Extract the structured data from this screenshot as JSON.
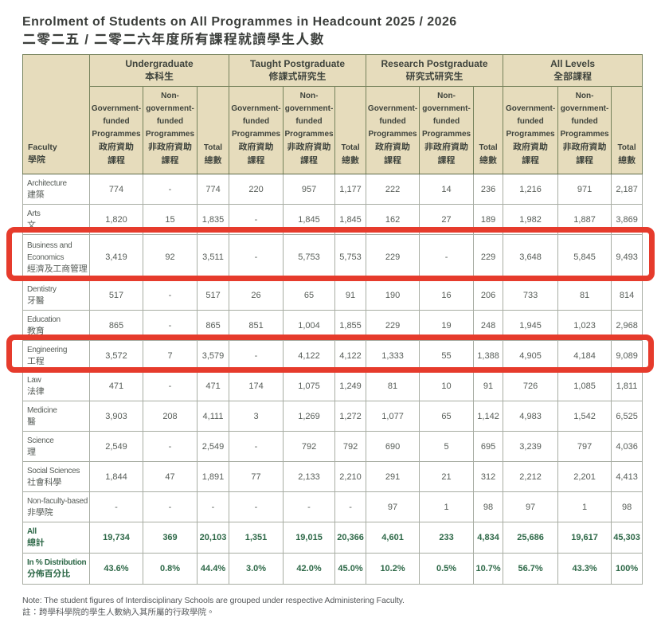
{
  "page": {
    "title_en": "Enrolment of Students on All Programmes in Headcount 2025 / 2026",
    "title_zh": "二零二五 / 二零二六年度所有課程就讀學生人數",
    "note_en": "Note: The student figures of Interdisciplinary Schools are grouped under respective Administering Faculty.",
    "note_zh": "註：跨學科學院的學生人數納入其所屬的行政學院。"
  },
  "colors": {
    "header_bg": "#e6dcbc",
    "header_grid": "#76825c",
    "body_grid": "#a8ada3",
    "total_text_green": "#2d6847",
    "highlight_red": "#e63b2c"
  },
  "table": {
    "faculty_header": {
      "en": "Faculty",
      "zh": "學院"
    },
    "groups": [
      {
        "en": "Undergraduate",
        "zh": "本科生"
      },
      {
        "en": "Taught Postgraduate",
        "zh": "修課式研究生"
      },
      {
        "en": "Research Postgraduate",
        "zh": "研究式研究生"
      },
      {
        "en": "All Levels",
        "zh": "全部課程"
      }
    ],
    "subcolumns": [
      {
        "en": "Government-funded Programmes",
        "zh": "政府資助\n課程"
      },
      {
        "en": "Non-government-funded Programmes",
        "zh": "非政府資助\n課程"
      },
      {
        "en": "Total",
        "zh": "總數"
      }
    ],
    "rows": [
      {
        "faculty_en": "Architecture",
        "faculty_zh": "建築",
        "kind": "data",
        "values": [
          "774",
          "-",
          "774",
          "220",
          "957",
          "1,177",
          "222",
          "14",
          "236",
          "1,216",
          "971",
          "2,187"
        ]
      },
      {
        "faculty_en": "Arts",
        "faculty_zh": "文",
        "kind": "data",
        "values": [
          "1,820",
          "15",
          "1,835",
          "-",
          "1,845",
          "1,845",
          "162",
          "27",
          "189",
          "1,982",
          "1,887",
          "3,869"
        ]
      },
      {
        "faculty_en": "Business and Economics",
        "faculty_zh": "經濟及工商管理",
        "kind": "data",
        "tall": true,
        "highlighted": true,
        "values": [
          "3,419",
          "92",
          "3,511",
          "-",
          "5,753",
          "5,753",
          "229",
          "-",
          "229",
          "3,648",
          "5,845",
          "9,493"
        ]
      },
      {
        "faculty_en": "Dentistry",
        "faculty_zh": "牙醫",
        "kind": "data",
        "values": [
          "517",
          "-",
          "517",
          "26",
          "65",
          "91",
          "190",
          "16",
          "206",
          "733",
          "81",
          "814"
        ]
      },
      {
        "faculty_en": "Education",
        "faculty_zh": "教育",
        "kind": "data",
        "values": [
          "865",
          "-",
          "865",
          "851",
          "1,004",
          "1,855",
          "229",
          "19",
          "248",
          "1,945",
          "1,023",
          "2,968"
        ]
      },
      {
        "faculty_en": "Engineering",
        "faculty_zh": "工程",
        "kind": "data",
        "highlighted": true,
        "values": [
          "3,572",
          "7",
          "3,579",
          "-",
          "4,122",
          "4,122",
          "1,333",
          "55",
          "1,388",
          "4,905",
          "4,184",
          "9,089"
        ]
      },
      {
        "faculty_en": "Law",
        "faculty_zh": "法律",
        "kind": "data",
        "values": [
          "471",
          "-",
          "471",
          "174",
          "1,075",
          "1,249",
          "81",
          "10",
          "91",
          "726",
          "1,085",
          "1,811"
        ]
      },
      {
        "faculty_en": "Medicine",
        "faculty_zh": "醫",
        "kind": "data",
        "values": [
          "3,903",
          "208",
          "4,111",
          "3",
          "1,269",
          "1,272",
          "1,077",
          "65",
          "1,142",
          "4,983",
          "1,542",
          "6,525"
        ]
      },
      {
        "faculty_en": "Science",
        "faculty_zh": "理",
        "kind": "data",
        "values": [
          "2,549",
          "-",
          "2,549",
          "-",
          "792",
          "792",
          "690",
          "5",
          "695",
          "3,239",
          "797",
          "4,036"
        ]
      },
      {
        "faculty_en": "Social Sciences",
        "faculty_zh": "社會科學",
        "kind": "data",
        "values": [
          "1,844",
          "47",
          "1,891",
          "77",
          "2,133",
          "2,210",
          "291",
          "21",
          "312",
          "2,212",
          "2,201",
          "4,413"
        ]
      },
      {
        "faculty_en": "Non-faculty-based",
        "faculty_zh": "非學院",
        "kind": "data",
        "values": [
          "-",
          "-",
          "-",
          "-",
          "-",
          "-",
          "97",
          "1",
          "98",
          "97",
          "1",
          "98"
        ]
      },
      {
        "faculty_en": "All",
        "faculty_zh": "總計",
        "kind": "total",
        "values": [
          "19,734",
          "369",
          "20,103",
          "1,351",
          "19,015",
          "20,366",
          "4,601",
          "233",
          "4,834",
          "25,686",
          "19,617",
          "45,303"
        ]
      },
      {
        "faculty_en": "In % Distribution",
        "faculty_zh": "分佈百分比",
        "kind": "total",
        "values": [
          "43.6%",
          "0.8%",
          "44.4%",
          "3.0%",
          "42.0%",
          "45.0%",
          "10.2%",
          "0.5%",
          "10.7%",
          "56.7%",
          "43.3%",
          "100%"
        ]
      }
    ],
    "highlighted_rows": [
      "Business and Economics",
      "Engineering"
    ]
  }
}
